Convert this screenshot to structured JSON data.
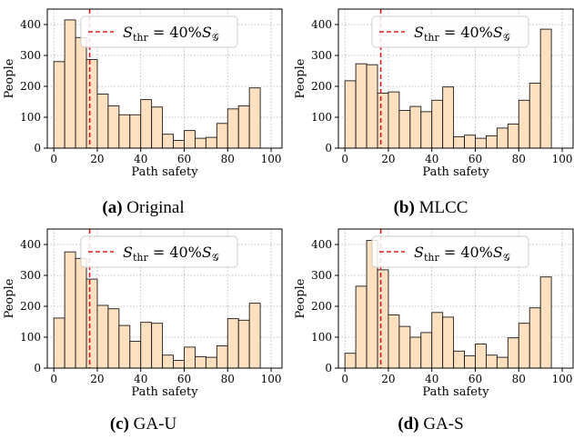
{
  "figure": {
    "colors": {
      "bar_fill": "#fde0bf",
      "bar_edge": "#1a1a1a",
      "threshold": "#e41a1c",
      "grid": "#b0b0b0"
    },
    "xlabel": "Path safety",
    "ylabel": "People",
    "xticks": [
      0,
      20,
      40,
      60,
      80,
      100
    ],
    "yticks": [
      0,
      100,
      200,
      300,
      400
    ],
    "xlim": [
      -3,
      105
    ],
    "ylim": [
      0,
      450
    ],
    "threshold_x": 16.5,
    "legend": {
      "line_style": "dashed",
      "placement": "top-center",
      "label_s": "S",
      "label_sub": "thr",
      "label_eq": " = 40%",
      "label_s2": "S",
      "label_sub2": "𝒢"
    }
  },
  "chart_data": [
    {
      "type": "bar",
      "caption_label": "(a)",
      "caption_name": "Original",
      "bin_width": 5,
      "bin_starts": [
        0,
        5,
        10,
        15,
        20,
        25,
        30,
        35,
        40,
        45,
        50,
        55,
        60,
        65,
        70,
        75,
        80,
        85,
        90,
        95
      ],
      "values": [
        280,
        415,
        358,
        287,
        175,
        137,
        108,
        108,
        157,
        133,
        45,
        25,
        57,
        32,
        35,
        80,
        127,
        137,
        195,
        0
      ],
      "xlabel": "Path safety",
      "ylabel": "People",
      "ylim": [
        0,
        450
      ],
      "grid": true
    },
    {
      "type": "bar",
      "caption_label": "(b)",
      "caption_name": "MLCC",
      "bin_width": 5,
      "bin_starts": [
        0,
        5,
        10,
        15,
        20,
        25,
        30,
        35,
        40,
        45,
        50,
        55,
        60,
        65,
        70,
        75,
        80,
        85,
        90,
        95
      ],
      "values": [
        218,
        273,
        270,
        178,
        182,
        122,
        135,
        118,
        155,
        198,
        37,
        42,
        32,
        40,
        65,
        78,
        155,
        210,
        385,
        0
      ],
      "xlabel": "Path safety",
      "ylabel": "People",
      "ylim": [
        0,
        450
      ],
      "grid": true
    },
    {
      "type": "bar",
      "caption_label": "(c)",
      "caption_name": "GA-U",
      "bin_width": 5,
      "bin_starts": [
        0,
        5,
        10,
        15,
        20,
        25,
        30,
        35,
        40,
        45,
        50,
        55,
        60,
        65,
        70,
        75,
        80,
        85,
        90,
        95
      ],
      "values": [
        162,
        376,
        355,
        288,
        203,
        192,
        138,
        87,
        148,
        145,
        42,
        25,
        68,
        37,
        35,
        72,
        160,
        155,
        210,
        0
      ],
      "xlabel": "Path safety",
      "ylabel": "People",
      "ylim": [
        0,
        450
      ],
      "grid": true
    },
    {
      "type": "bar",
      "caption_label": "(d)",
      "caption_name": "GA-S",
      "bin_width": 5,
      "bin_starts": [
        0,
        5,
        10,
        15,
        20,
        25,
        30,
        35,
        40,
        45,
        50,
        55,
        60,
        65,
        70,
        75,
        80,
        85,
        90,
        95
      ],
      "values": [
        48,
        265,
        413,
        318,
        172,
        135,
        100,
        115,
        180,
        165,
        55,
        40,
        78,
        42,
        35,
        98,
        145,
        195,
        295,
        0
      ],
      "xlabel": "Path safety",
      "ylabel": "People",
      "ylim": [
        0,
        450
      ],
      "grid": true
    }
  ]
}
